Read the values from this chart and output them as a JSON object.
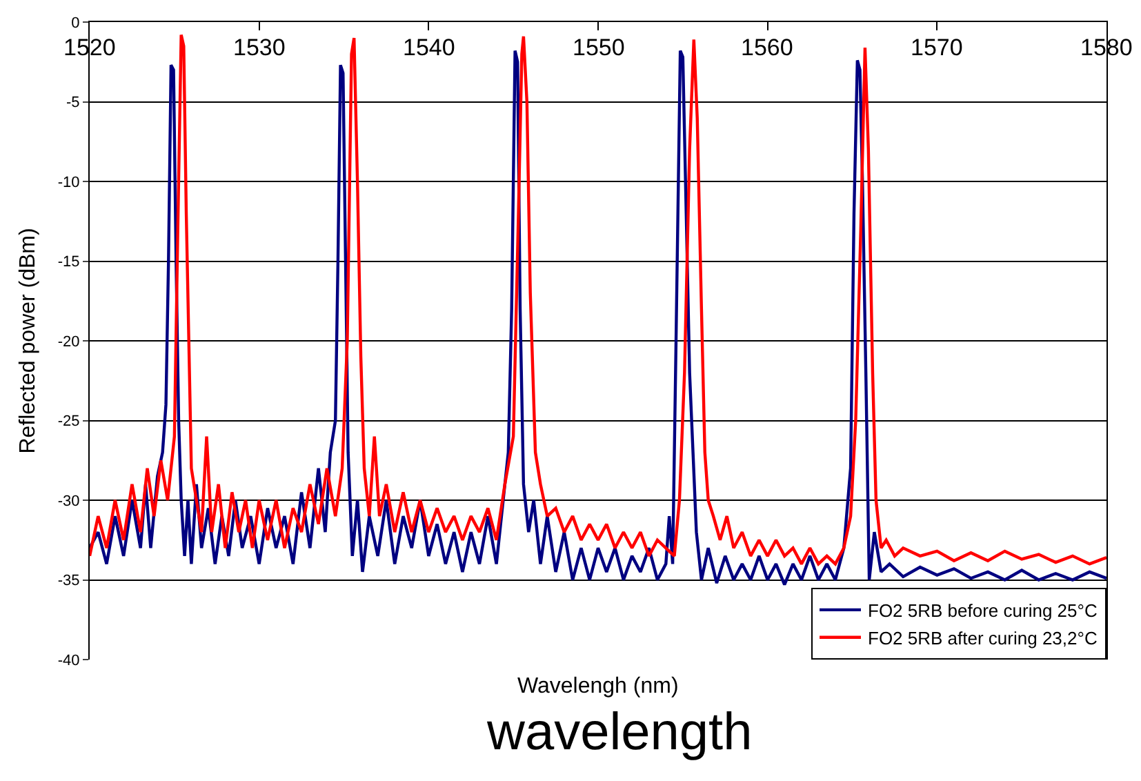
{
  "chart_data": {
    "type": "line",
    "xlabel": "Wavelengh (nm)",
    "ylabel": "Reflected power (dBm)",
    "annotations": [
      "wavelength"
    ],
    "xlim": [
      1520,
      1580
    ],
    "xticks": [
      1520,
      1530,
      1540,
      1550,
      1560,
      1570,
      1580
    ],
    "ylim": [
      -40,
      0
    ],
    "yticks": [
      0,
      -5,
      -10,
      -15,
      -20,
      -25,
      -30,
      -35,
      -40
    ],
    "grid": "y",
    "legend": "bottom right",
    "marker": "none",
    "line_style": "solid",
    "series": [
      {
        "name": "FO2 5RB before curing 25°C",
        "color": "#000080",
        "x": [
          1520,
          1520.5,
          1521,
          1521.5,
          1522,
          1522.5,
          1523,
          1523.3,
          1523.6,
          1524,
          1524.3,
          1524.5,
          1524.65,
          1524.8,
          1524.95,
          1525.1,
          1525.25,
          1525.4,
          1525.6,
          1525.8,
          1526,
          1526.3,
          1526.6,
          1527,
          1527.4,
          1527.8,
          1528.2,
          1528.6,
          1529,
          1529.5,
          1530,
          1530.5,
          1531,
          1531.5,
          1532,
          1532.5,
          1533,
          1533.5,
          1533.9,
          1534.2,
          1534.5,
          1534.65,
          1534.8,
          1534.95,
          1535.1,
          1535.25,
          1535.5,
          1535.8,
          1536.1,
          1536.5,
          1537,
          1537.5,
          1538,
          1538.5,
          1539,
          1539.5,
          1540,
          1540.5,
          1541,
          1541.5,
          1542,
          1542.5,
          1543,
          1543.5,
          1544,
          1544.4,
          1544.7,
          1544.9,
          1545.1,
          1545.25,
          1545.4,
          1545.6,
          1545.9,
          1546.2,
          1546.6,
          1547,
          1547.5,
          1548,
          1548.5,
          1549,
          1549.5,
          1550,
          1550.5,
          1551,
          1551.5,
          1552,
          1552.5,
          1553,
          1553.5,
          1554,
          1554.2,
          1554.4,
          1554.6,
          1554.85,
          1555.0,
          1555.2,
          1555.4,
          1555.6,
          1555.8,
          1556.1,
          1556.5,
          1557,
          1557.5,
          1558,
          1558.5,
          1559,
          1559.5,
          1560,
          1560.5,
          1561,
          1561.5,
          1562,
          1562.5,
          1563,
          1563.5,
          1564,
          1564.5,
          1564.9,
          1565.1,
          1565.3,
          1565.45,
          1565.6,
          1565.8,
          1566,
          1566.3,
          1566.7,
          1567.2,
          1568,
          1569,
          1570,
          1571,
          1572,
          1573,
          1574,
          1575,
          1576,
          1577,
          1578,
          1579,
          1580
        ],
        "values": [
          -33,
          -32,
          -34,
          -31,
          -33.5,
          -30,
          -33,
          -29,
          -33,
          -28.5,
          -27,
          -24,
          -15,
          -2.7,
          -3,
          -15,
          -25,
          -30,
          -33.5,
          -30,
          -34,
          -29,
          -33,
          -30.5,
          -34,
          -31,
          -33.5,
          -30,
          -33,
          -31,
          -34,
          -30.5,
          -33,
          -31,
          -34,
          -29.5,
          -33,
          -28,
          -32,
          -27,
          -25,
          -15,
          -2.7,
          -3.2,
          -15,
          -27,
          -33.5,
          -30,
          -34.5,
          -31,
          -33.5,
          -30,
          -34,
          -31,
          -33,
          -30,
          -33.5,
          -31.5,
          -34,
          -32,
          -34.5,
          -32,
          -34,
          -31,
          -34,
          -30,
          -27,
          -18,
          -1.8,
          -2.5,
          -18,
          -29,
          -32,
          -30,
          -34,
          -31,
          -34.5,
          -32,
          -35,
          -33,
          -35,
          -33,
          -34.5,
          -33,
          -35,
          -33.5,
          -34.5,
          -33,
          -35,
          -34,
          -31,
          -34,
          -20,
          -1.8,
          -2.2,
          -12,
          -22,
          -27,
          -32,
          -35,
          -33,
          -35.2,
          -33.5,
          -35,
          -34,
          -35,
          -33.5,
          -35,
          -34,
          -35.3,
          -34,
          -35,
          -33.5,
          -35,
          -34,
          -35,
          -33,
          -28,
          -12,
          -2.4,
          -3,
          -10,
          -22,
          -35,
          -32,
          -34.5,
          -34,
          -34.8,
          -34.2,
          -34.7,
          -34.3,
          -34.9,
          -34.5,
          -35,
          -34.4,
          -35,
          -34.6,
          -35,
          -34.5,
          -34.9
        ]
      },
      {
        "name": "FO2 5RB after curing 23,2°C",
        "color": "#ff0000",
        "x": [
          1520,
          1520.5,
          1521,
          1521.5,
          1522,
          1522.5,
          1523,
          1523.4,
          1523.8,
          1524.2,
          1524.6,
          1525,
          1525.2,
          1525.4,
          1525.55,
          1525.7,
          1525.85,
          1526,
          1526.3,
          1526.6,
          1526.9,
          1527.2,
          1527.6,
          1528,
          1528.4,
          1528.8,
          1529.2,
          1529.6,
          1530,
          1530.5,
          1531,
          1531.5,
          1532,
          1532.5,
          1533,
          1533.5,
          1534,
          1534.5,
          1534.9,
          1535.2,
          1535.45,
          1535.6,
          1535.8,
          1536,
          1536.2,
          1536.5,
          1536.8,
          1537.1,
          1537.5,
          1538,
          1538.5,
          1539,
          1539.5,
          1540,
          1540.5,
          1541,
          1541.5,
          1542,
          1542.5,
          1543,
          1543.5,
          1544,
          1544.5,
          1545,
          1545.3,
          1545.5,
          1545.6,
          1545.8,
          1546,
          1546.3,
          1546.6,
          1547,
          1547.5,
          1548,
          1548.5,
          1549,
          1549.5,
          1550,
          1550.5,
          1551,
          1551.5,
          1552,
          1552.5,
          1553,
          1553.5,
          1554,
          1554.5,
          1554.8,
          1555.1,
          1555.4,
          1555.65,
          1555.85,
          1556.1,
          1556.3,
          1556.5,
          1556.8,
          1557.2,
          1557.6,
          1558,
          1558.5,
          1559,
          1559.5,
          1560,
          1560.5,
          1561,
          1561.5,
          1562,
          1562.5,
          1563,
          1563.5,
          1564,
          1564.5,
          1564.9,
          1565.2,
          1565.5,
          1565.75,
          1565.95,
          1566.2,
          1566.4,
          1566.7,
          1567,
          1567.5,
          1568,
          1569,
          1570,
          1571,
          1572,
          1573,
          1574,
          1575,
          1576,
          1577,
          1578,
          1579,
          1580
        ],
        "values": [
          -33.5,
          -31,
          -33,
          -30,
          -32.5,
          -29,
          -32,
          -28,
          -31,
          -27.5,
          -30,
          -26,
          -13,
          -0.8,
          -1.5,
          -12,
          -20,
          -28,
          -30,
          -32,
          -26,
          -32,
          -29,
          -33,
          -29.5,
          -32,
          -30,
          -33,
          -30,
          -32.5,
          -30,
          -33,
          -30.5,
          -32,
          -29,
          -31.5,
          -28,
          -31,
          -28,
          -20,
          -2,
          -1.0,
          -10,
          -21,
          -28,
          -31,
          -26,
          -31,
          -29,
          -32,
          -29.5,
          -32,
          -30,
          -32,
          -30.5,
          -32,
          -31,
          -32.5,
          -31,
          -32,
          -30.5,
          -32.5,
          -29,
          -26,
          -12,
          -2,
          -0.9,
          -5,
          -17,
          -27,
          -29,
          -31,
          -30.5,
          -32,
          -31,
          -32.5,
          -31.5,
          -32.5,
          -31.5,
          -33,
          -32,
          -33,
          -32,
          -33.5,
          -32.5,
          -33,
          -33.5,
          -30,
          -22,
          -8,
          -1.1,
          -6,
          -18,
          -27,
          -30,
          -31,
          -32.5,
          -31,
          -33,
          -32,
          -33.5,
          -32.5,
          -33.5,
          -32.5,
          -33.5,
          -33,
          -34,
          -33,
          -34,
          -33.5,
          -34,
          -33,
          -31,
          -25,
          -13,
          -1.6,
          -8,
          -22,
          -30,
          -33,
          -32.5,
          -33.5,
          -33,
          -33.5,
          -33.2,
          -33.8,
          -33.3,
          -33.8,
          -33.2,
          -33.7,
          -33.4,
          -33.9,
          -33.5,
          -34,
          -33.6
        ]
      }
    ]
  }
}
